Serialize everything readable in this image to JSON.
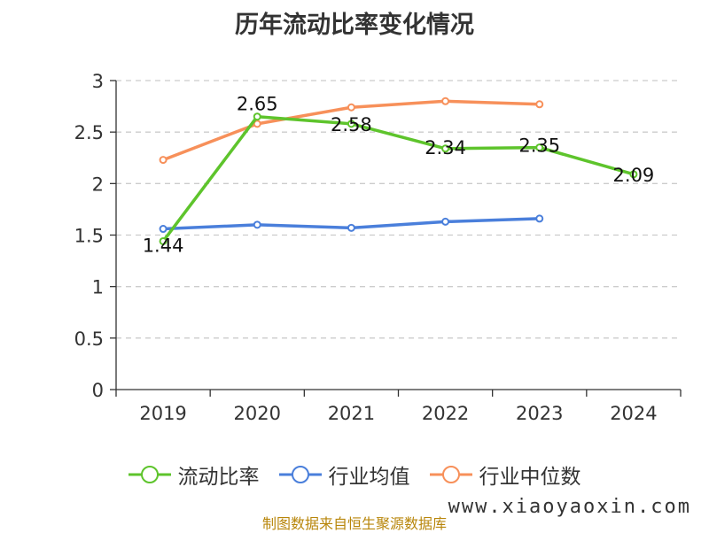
{
  "chart_data": {
    "type": "line",
    "title": "历年流动比率变化情况",
    "categories": [
      "2019",
      "2020",
      "2021",
      "2022",
      "2023",
      "2024"
    ],
    "ylim": [
      0,
      3
    ],
    "yticks": [
      "0",
      "0.5",
      "1",
      "1.5",
      "2",
      "2.5",
      "3"
    ],
    "grid": true,
    "legend_position": "bottom",
    "series": [
      {
        "name": "流动比率",
        "color": "#5ec42c",
        "values": [
          1.44,
          2.65,
          2.58,
          2.34,
          2.35,
          2.09
        ],
        "labels": [
          "1.44",
          "2.65",
          "2.58",
          "2.34",
          "2.35",
          "2.09"
        ]
      },
      {
        "name": "行业均值",
        "color": "#4a7fdb",
        "values": [
          1.56,
          1.6,
          1.57,
          1.63,
          1.66,
          null
        ]
      },
      {
        "name": "行业中位数",
        "color": "#f7905a",
        "values": [
          2.23,
          2.58,
          2.74,
          2.8,
          2.77,
          null
        ]
      }
    ]
  },
  "footer": {
    "source": "制图数据来自恒生聚源数据库",
    "watermark": "www.xiaoyaoxin.com"
  }
}
